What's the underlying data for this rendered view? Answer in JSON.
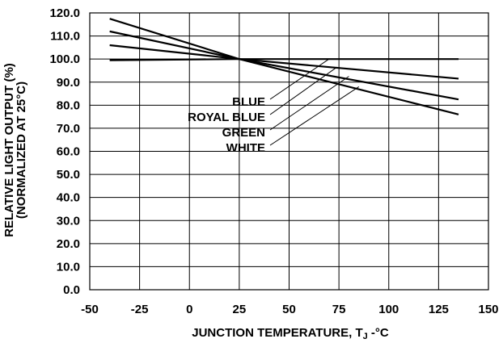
{
  "chart_data": {
    "type": "line",
    "title": "",
    "xlabel": "JUNCTION TEMPERATURE, T",
    "xlabel_sub": "J",
    "xlabel_unit": " -°C",
    "ylabel_line1": "RELATIVE LIGHT OUTPUT (%)",
    "ylabel_line2": "(NORMALIZED AT 25°C)",
    "xlim": [
      -50,
      150
    ],
    "ylim": [
      0,
      120
    ],
    "x_ticks": [
      -50,
      -25,
      0,
      25,
      50,
      75,
      100,
      125,
      150
    ],
    "y_ticks": [
      0,
      10,
      20,
      30,
      40,
      50,
      60,
      70,
      80,
      90,
      100,
      110,
      120
    ],
    "y_tick_labels": [
      "0.0",
      "10.0",
      "20.0",
      "30.0",
      "40.0",
      "50.0",
      "60.0",
      "70.0",
      "80.0",
      "90.0",
      "100.0",
      "110.0",
      "120.0"
    ],
    "grid": true,
    "series": [
      {
        "name": "BLUE",
        "x": [
          -40,
          25,
          135
        ],
        "y": [
          99.5,
          100,
          100
        ]
      },
      {
        "name": "ROYAL BLUE",
        "x": [
          -40,
          25,
          135
        ],
        "y": [
          106,
          100,
          91.5
        ]
      },
      {
        "name": "GREEN",
        "x": [
          -40,
          25,
          135
        ],
        "y": [
          112,
          100,
          82.5
        ]
      },
      {
        "name": "WHITE",
        "x": [
          -40,
          25,
          135
        ],
        "y": [
          117.5,
          100,
          76
        ]
      }
    ],
    "label_pointers": [
      {
        "name": "BLUE",
        "to": [
          70,
          100
        ]
      },
      {
        "name": "ROYAL BLUE",
        "to": [
          74,
          96.5
        ]
      },
      {
        "name": "GREEN",
        "to": [
          80,
          92.5
        ]
      },
      {
        "name": "WHITE",
        "to": [
          85,
          88
        ]
      }
    ]
  }
}
